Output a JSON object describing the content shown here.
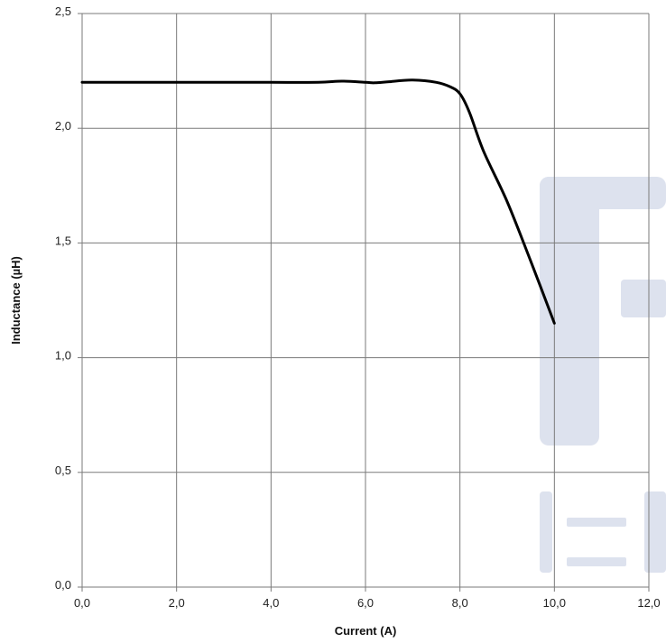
{
  "chart_data": {
    "type": "line",
    "title": "",
    "xlabel": "Current (A)",
    "ylabel": "Inductance (µH)",
    "xlim": [
      0,
      12
    ],
    "ylim": [
      0,
      2.5
    ],
    "x_ticks": [
      "0,0",
      "2,0",
      "4,0",
      "6,0",
      "8,0",
      "10,0",
      "12,0"
    ],
    "y_ticks": [
      "0,0",
      "0,5",
      "1,0",
      "1,5",
      "2,0",
      "2,5"
    ],
    "grid": true,
    "series": [
      {
        "x": [
          0,
          1,
          2,
          3,
          4,
          5,
          5.5,
          6,
          6.2,
          6.5,
          7,
          7.5,
          7.8,
          8.0,
          8.2,
          8.5,
          9.0,
          9.5,
          10.0
        ],
        "y": [
          2.2,
          2.2,
          2.2,
          2.2,
          2.2,
          2.2,
          2.205,
          2.2,
          2.198,
          2.203,
          2.21,
          2.2,
          2.18,
          2.15,
          2.07,
          1.9,
          1.68,
          1.42,
          1.15
        ],
        "color": "#000000"
      }
    ],
    "watermark_color": "#dde2ee"
  }
}
